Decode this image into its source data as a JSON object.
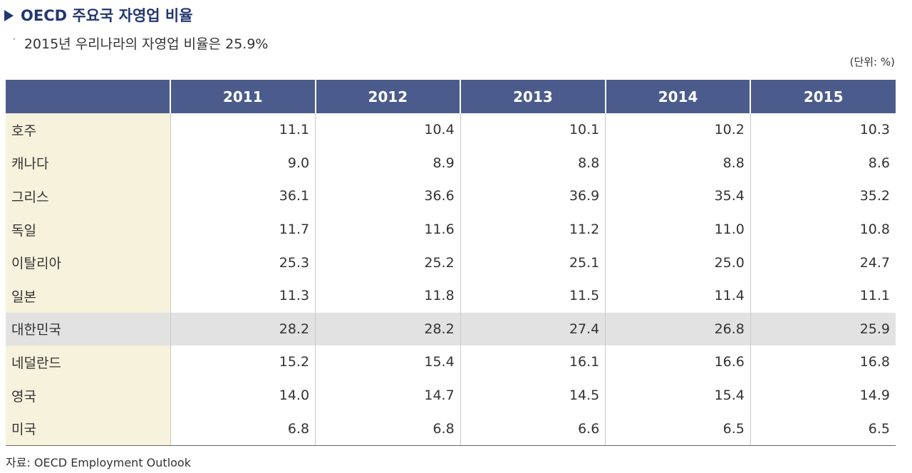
{
  "title": "OECD 주요국 자영업 비율",
  "subtitle": "2015년 우리나라의 자영업 비율은 25.9%",
  "bullet": "·",
  "unit_label": "(단위: %)",
  "source": "자료: OECD Employment Outlook",
  "colors": {
    "title": "#22376f",
    "header_bg": "#4b5b8c",
    "country_bg": "#f6f2dc",
    "highlight_row_bg": "#e2e2e2"
  },
  "table": {
    "headers": [
      "",
      "2011",
      "2012",
      "2013",
      "2014",
      "2015"
    ],
    "highlight_row": "대한민국",
    "rows": [
      {
        "country": "호주",
        "values": [
          "11.1",
          "10.4",
          "10.1",
          "10.2",
          "10.3"
        ]
      },
      {
        "country": "캐나다",
        "values": [
          "9.0",
          "8.9",
          "8.8",
          "8.8",
          "8.6"
        ]
      },
      {
        "country": "그리스",
        "values": [
          "36.1",
          "36.6",
          "36.9",
          "35.4",
          "35.2"
        ]
      },
      {
        "country": "독일",
        "values": [
          "11.7",
          "11.6",
          "11.2",
          "11.0",
          "10.8"
        ]
      },
      {
        "country": "이탈리아",
        "values": [
          "25.3",
          "25.2",
          "25.1",
          "25.0",
          "24.7"
        ]
      },
      {
        "country": "일본",
        "values": [
          "11.3",
          "11.8",
          "11.5",
          "11.4",
          "11.1"
        ]
      },
      {
        "country": "대한민국",
        "values": [
          "28.2",
          "28.2",
          "27.4",
          "26.8",
          "25.9"
        ]
      },
      {
        "country": "네덜란드",
        "values": [
          "15.2",
          "15.4",
          "16.1",
          "16.6",
          "16.8"
        ]
      },
      {
        "country": "영국",
        "values": [
          "14.0",
          "14.7",
          "14.5",
          "15.4",
          "14.9"
        ]
      },
      {
        "country": "미국",
        "values": [
          "6.8",
          "6.8",
          "6.6",
          "6.5",
          "6.5"
        ]
      }
    ]
  }
}
